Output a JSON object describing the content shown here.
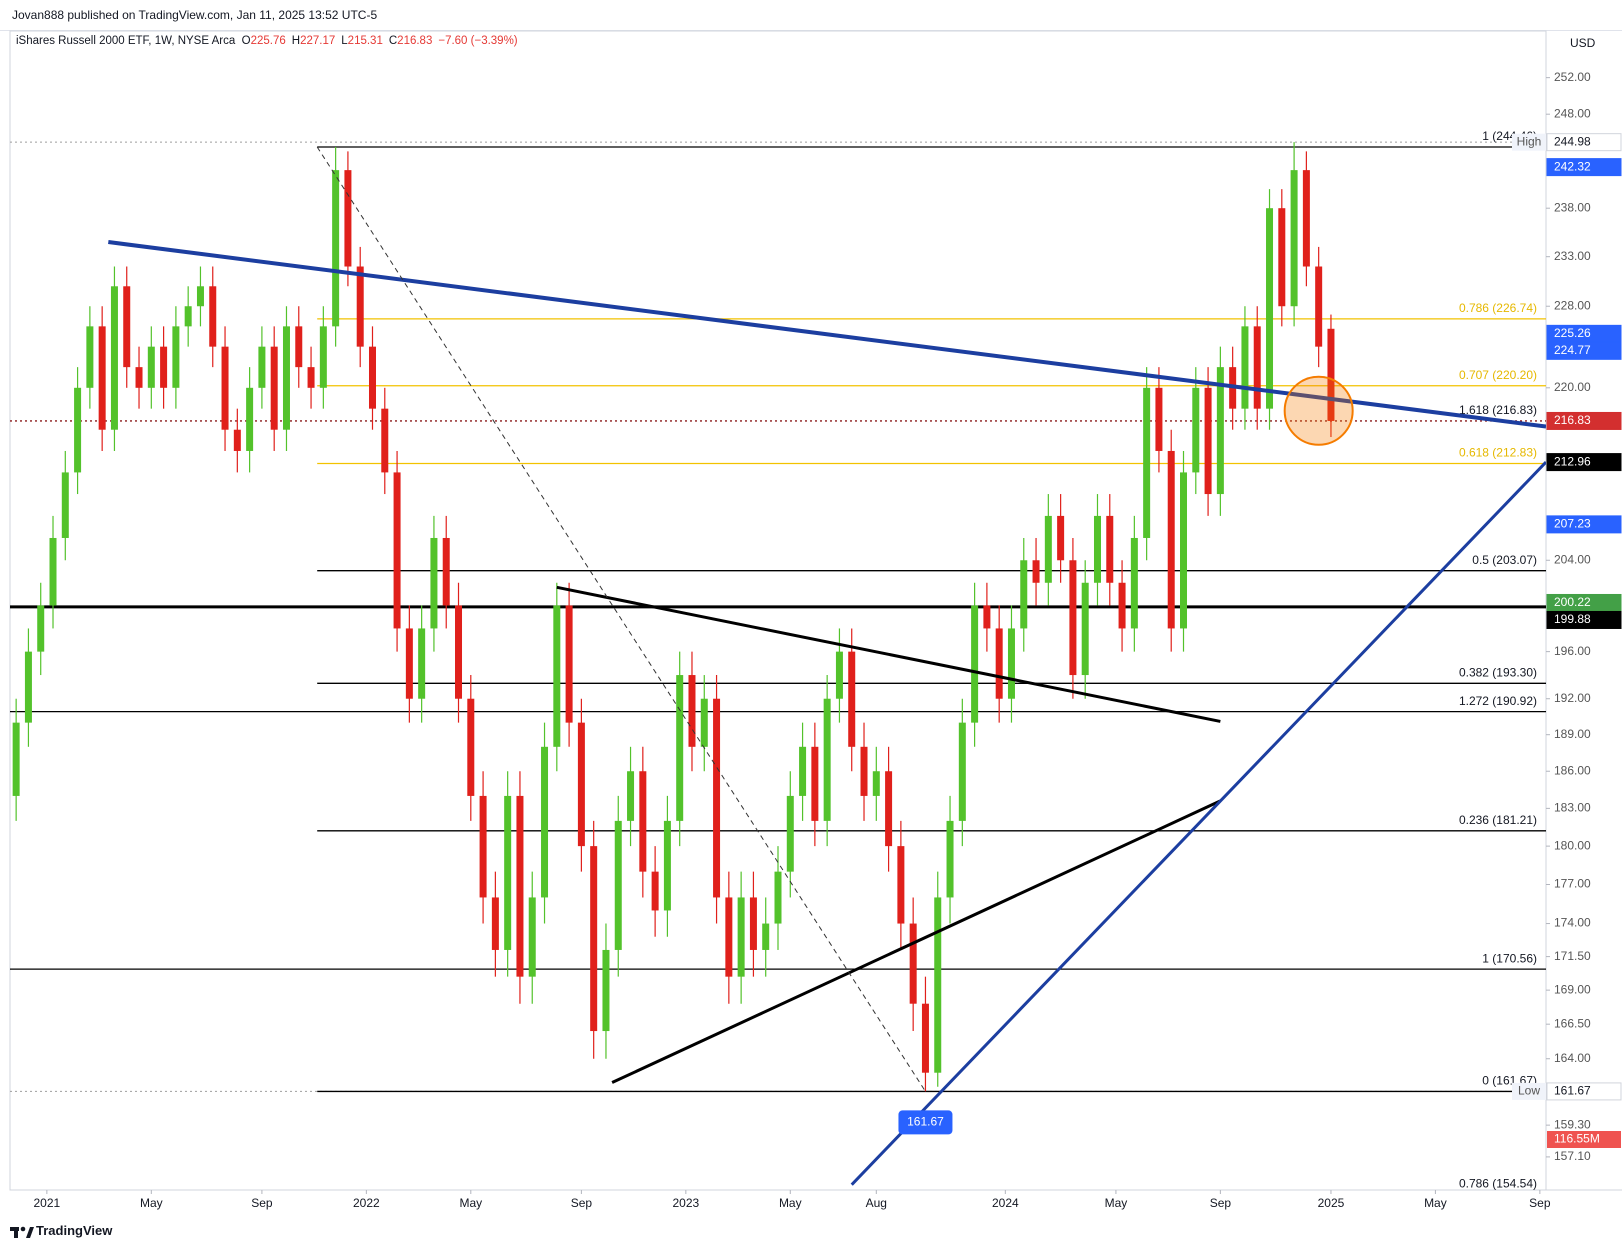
{
  "header": {
    "published": "Jovan888 published on TradingView.com, Jan 11, 2025 13:52 UTC-5"
  },
  "legend": {
    "o": "O",
    "h": "H",
    "l": "L",
    "c": "C",
    "change": "−7.60 (−3.39%)"
  },
  "footer": {
    "brand": "TradingView"
  },
  "chart_data": {
    "type": "candlestick",
    "title": "iShares Russell 2000 ETF, 1W, NYSE Arca",
    "currency": "USD",
    "up_color": "#53c22b",
    "down_color": "#e0201b",
    "log_scale": true,
    "xlim": [
      -6,
      244
    ],
    "ylim": [
      154.84,
      257.2
    ],
    "xticks": [
      {
        "value": 0,
        "label": "2021"
      },
      {
        "value": 17,
        "label": "May"
      },
      {
        "value": 35,
        "label": "Sep"
      },
      {
        "value": 52,
        "label": "2022"
      },
      {
        "value": 69,
        "label": "May"
      },
      {
        "value": 87,
        "label": "Sep"
      },
      {
        "value": 104,
        "label": "2023"
      },
      {
        "value": 121,
        "label": "May"
      },
      {
        "value": 135,
        "label": "Aug"
      },
      {
        "value": 156,
        "label": "2024"
      },
      {
        "value": 174,
        "label": "May"
      },
      {
        "value": 191,
        "label": "Sep"
      },
      {
        "value": 209,
        "label": "2025"
      },
      {
        "value": 226,
        "label": "May"
      },
      {
        "value": 243,
        "label": "Sep"
      }
    ],
    "yticks": [
      {
        "value": 252,
        "label": "252.00"
      },
      {
        "value": 248,
        "label": "248.00"
      },
      {
        "value": 238,
        "label": "238.00"
      },
      {
        "value": 233,
        "label": "233.00"
      },
      {
        "value": 228,
        "label": "228.00"
      },
      {
        "value": 220,
        "label": "220.00"
      },
      {
        "value": 204,
        "label": "204.00"
      },
      {
        "value": 196,
        "label": "196.00"
      },
      {
        "value": 192,
        "label": "192.00"
      },
      {
        "value": 189,
        "label": "189.00"
      },
      {
        "value": 186,
        "label": "186.00"
      },
      {
        "value": 183,
        "label": "183.00"
      },
      {
        "value": 180,
        "label": "180.00"
      },
      {
        "value": 177,
        "label": "177.00"
      },
      {
        "value": 174,
        "label": "174.00"
      },
      {
        "value": 171.5,
        "label": "171.50"
      },
      {
        "value": 169,
        "label": "169.00"
      },
      {
        "value": 166.5,
        "label": "166.50"
      },
      {
        "value": 164,
        "label": "164.00"
      },
      {
        "value": 159.3,
        "label": "159.30"
      },
      {
        "value": 157.1,
        "label": "157.10"
      }
    ],
    "x": [
      -5,
      -3,
      -1,
      1,
      3,
      5,
      7,
      9,
      11,
      13,
      15,
      17,
      19,
      21,
      23,
      25,
      27,
      29,
      31,
      33,
      35,
      37,
      39,
      41,
      43,
      45,
      47,
      49,
      51,
      53,
      55,
      57,
      59,
      61,
      63,
      65,
      67,
      69,
      71,
      73,
      75,
      77,
      79,
      81,
      83,
      85,
      87,
      89,
      91,
      93,
      95,
      97,
      99,
      101,
      103,
      105,
      107,
      109,
      111,
      113,
      115,
      117,
      119,
      121,
      123,
      125,
      127,
      129,
      131,
      133,
      135,
      137,
      139,
      141,
      143,
      145,
      147,
      149,
      151,
      153,
      155,
      157,
      159,
      161,
      163,
      165,
      167,
      169,
      171,
      173,
      175,
      177,
      179,
      181,
      183,
      185,
      187,
      189,
      191,
      193,
      195,
      197,
      199,
      201,
      203,
      205,
      207,
      209
    ],
    "open": [
      184,
      190,
      196,
      200,
      206,
      212,
      220,
      226,
      216,
      230,
      222,
      220,
      224,
      220,
      226,
      228,
      230,
      224,
      216,
      214,
      220,
      224,
      216,
      226,
      222,
      220,
      226,
      242,
      232,
      224,
      218,
      212,
      198,
      192,
      198,
      206,
      200,
      192,
      184,
      176,
      172,
      184,
      170,
      176,
      188,
      200,
      190,
      180,
      166,
      172,
      182,
      186,
      178,
      175,
      182,
      194,
      188,
      192,
      176,
      170,
      176,
      172,
      174,
      178,
      184,
      188,
      182,
      192,
      196,
      188,
      184,
      186,
      180,
      174,
      168,
      163,
      176,
      182,
      190,
      200,
      198,
      192,
      198,
      204,
      202,
      208,
      204,
      194,
      202,
      208,
      202,
      198,
      206,
      220,
      214,
      198,
      212,
      220,
      210,
      222,
      218,
      226,
      218,
      238,
      228,
      242,
      232,
      225.76
    ],
    "high": [
      192,
      198,
      202,
      208,
      214,
      222,
      228,
      228,
      232,
      232,
      224,
      226,
      226,
      228,
      230,
      232,
      232,
      226,
      218,
      222,
      226,
      226,
      228,
      228,
      224,
      228,
      244.46,
      244,
      234,
      226,
      220,
      214,
      200,
      200,
      208,
      208,
      202,
      194,
      186,
      178,
      186,
      186,
      178,
      190,
      202,
      202,
      192,
      182,
      174,
      184,
      188,
      188,
      180,
      184,
      196,
      196,
      194,
      194,
      178,
      178,
      178,
      176,
      180,
      186,
      190,
      190,
      194,
      198,
      198,
      190,
      188,
      188,
      182,
      176,
      170,
      178,
      184,
      192,
      202,
      202,
      200,
      200,
      206,
      206,
      210,
      210,
      206,
      204,
      210,
      210,
      204,
      208,
      222,
      222,
      216,
      214,
      222,
      222,
      224,
      224,
      228,
      228,
      240,
      240,
      244.98,
      244,
      234,
      227.17
    ],
    "low": [
      182,
      188,
      194,
      198,
      204,
      210,
      218,
      214,
      214,
      220,
      218,
      218,
      218,
      218,
      224,
      226,
      222,
      214,
      212,
      212,
      218,
      214,
      214,
      220,
      218,
      218,
      224,
      230,
      222,
      216,
      210,
      196,
      190,
      190,
      196,
      198,
      190,
      182,
      174,
      170,
      170,
      168,
      168,
      174,
      186,
      188,
      178,
      164,
      164,
      170,
      180,
      176,
      173,
      173,
      180,
      186,
      186,
      174,
      168,
      168,
      170,
      170,
      172,
      176,
      182,
      180,
      180,
      190,
      186,
      182,
      182,
      178,
      172,
      166,
      161.67,
      162,
      174,
      180,
      188,
      196,
      190,
      190,
      196,
      200,
      200,
      202,
      192,
      192,
      200,
      200,
      196,
      196,
      204,
      212,
      196,
      196,
      210,
      208,
      208,
      216,
      216,
      216,
      216,
      226,
      226,
      230,
      222,
      215.31
    ],
    "close": [
      190,
      196,
      200,
      206,
      212,
      220,
      226,
      216,
      230,
      222,
      220,
      224,
      220,
      226,
      228,
      230,
      224,
      216,
      214,
      220,
      224,
      216,
      226,
      222,
      220,
      226,
      242,
      232,
      224,
      218,
      212,
      198,
      192,
      198,
      206,
      200,
      192,
      184,
      176,
      172,
      184,
      170,
      176,
      188,
      200,
      190,
      180,
      166,
      172,
      182,
      186,
      178,
      175,
      182,
      194,
      188,
      192,
      176,
      170,
      176,
      172,
      174,
      178,
      184,
      188,
      182,
      192,
      196,
      188,
      184,
      186,
      180,
      174,
      168,
      163,
      176,
      182,
      190,
      200,
      198,
      192,
      198,
      204,
      202,
      208,
      204,
      194,
      202,
      208,
      202,
      198,
      206,
      220,
      214,
      198,
      212,
      220,
      210,
      222,
      218,
      226,
      218,
      238,
      228,
      242,
      232,
      224,
      216.83
    ],
    "fib_start_x": 44,
    "fib_levels": [
      {
        "label": "1 (244.46)",
        "value": 244.46,
        "color": "#131722"
      },
      {
        "label": "0.786 (226.74)",
        "value": 226.74,
        "color": "#e6b800"
      },
      {
        "label": "0.707 (220.20)",
        "value": 220.2,
        "color": "#e6b800"
      },
      {
        "label": "1.618 (216.83)",
        "value": 216.83,
        "color": "#131722",
        "line_color": "#8b1a1a",
        "style": "dotted",
        "extend": true
      },
      {
        "label": "0.618 (212.83)",
        "value": 212.83,
        "color": "#e6b800"
      },
      {
        "label": "0.5 (203.07)",
        "value": 203.07,
        "color": "#131722"
      },
      {
        "label": "0.382 (193.30)",
        "value": 193.3,
        "color": "#131722"
      },
      {
        "label": "1.272 (190.92)",
        "value": 190.92,
        "color": "#131722",
        "extend": true
      },
      {
        "label": "0.236 (181.21)",
        "value": 181.21,
        "color": "#131722"
      },
      {
        "label": "1 (170.56)",
        "value": 170.56,
        "color": "#131722",
        "extend": true
      },
      {
        "label": "0 (161.67)",
        "value": 161.67,
        "color": "#131722"
      },
      {
        "label": "0.786 (154.54)",
        "value": 154.54,
        "color": "#131722",
        "extend": true
      }
    ],
    "lines": [
      {
        "value": 199.88,
        "color": "#000000",
        "width": 3
      },
      {
        "value": 244.98,
        "color": "#9e9e9e",
        "width": 1,
        "style": "dotted"
      },
      {
        "value": 161.67,
        "color": "#9e9e9e",
        "width": 1,
        "style": "dotted"
      }
    ],
    "trendlines": [
      {
        "color": "#1c3ea0",
        "width": 4,
        "points": [
          [
            10,
            234.5
          ],
          [
            244,
            216.3
          ]
        ]
      },
      {
        "color": "#000000",
        "width": 3,
        "points": [
          [
            83,
            201.6
          ],
          [
            191,
            190.1
          ]
        ]
      },
      {
        "color": "#000000",
        "width": 3,
        "points": [
          [
            92,
            162.3
          ],
          [
            191,
            183.6
          ]
        ]
      },
      {
        "color": "#1c3ea0",
        "width": 3,
        "points": [
          [
            131,
            155.2
          ],
          [
            244,
            212.96
          ]
        ]
      },
      {
        "color": "#333333",
        "width": 1,
        "style": "dashed",
        "points": [
          [
            44,
            244.46
          ],
          [
            143,
            161.67
          ]
        ]
      }
    ],
    "circle": {
      "x": 207,
      "value": 217.8,
      "color": "#f57c00"
    },
    "low_marker": {
      "x": 143,
      "value": 161.67,
      "color": "#2962ff"
    },
    "badges": [
      {
        "value": 244.98,
        "bg": "#ffffff",
        "fg": "#131722",
        "tag": "High"
      },
      {
        "value": 242.32,
        "bg": "#2962ff",
        "fg": "#ffffff"
      },
      {
        "value": 225.26,
        "bg": "#2962ff",
        "fg": "#ffffff"
      },
      {
        "value": 224.77,
        "bg": "#2962ff",
        "fg": "#ffffff"
      },
      {
        "value": 216.83,
        "bg": "#d32f2f",
        "fg": "#ffffff"
      },
      {
        "value": 212.96,
        "bg": "#000000",
        "fg": "#ffffff"
      },
      {
        "value": 207.23,
        "bg": "#2962ff",
        "fg": "#ffffff"
      },
      {
        "value": 200.22,
        "bg": "#43a047",
        "fg": "#ffffff"
      },
      {
        "value": 199.88,
        "bg": "#000000",
        "fg": "#ffffff"
      },
      {
        "value": 161.67,
        "bg": "#ffffff",
        "fg": "#131722",
        "tag": "Low"
      }
    ],
    "volume_badge": {
      "label": "116.55M",
      "bg": "#ef5350"
    }
  }
}
